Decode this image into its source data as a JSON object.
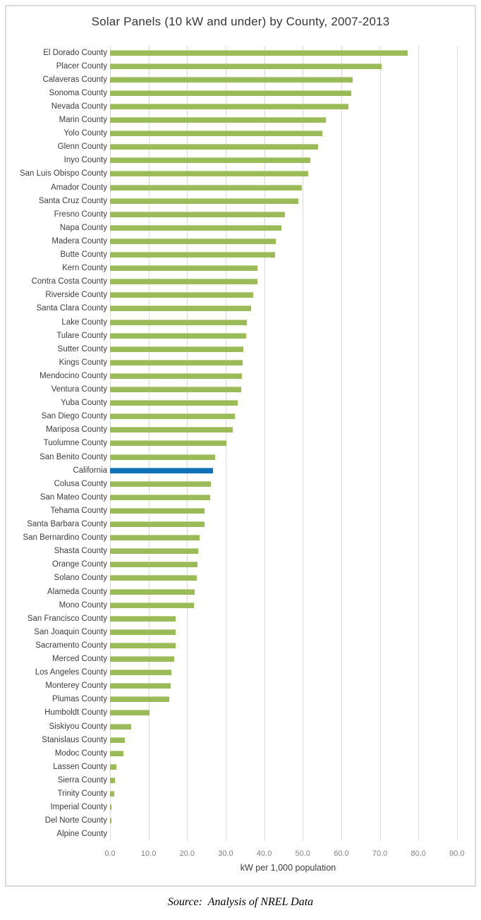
{
  "source_note": "Source:  Analysis of NREL Data",
  "colors": {
    "bar_green": "#9BBB59",
    "bar_blue_highlight": "#0F72B9",
    "gridline": "#D9D9D9",
    "figure_border": "#DBDBDB",
    "title_text": "#363636",
    "label_text": "#3D3D3D",
    "tick_text": "#7F7F7F"
  },
  "chart_data": {
    "type": "bar",
    "orientation": "horizontal",
    "title": "Solar Panels (10 kW and under) by County, 2007-2013",
    "xlabel": "kW per 1,000 population",
    "ylabel": "",
    "xlim": [
      0,
      92.4
    ],
    "grid": true,
    "legend": false,
    "x_ticks": [
      "0.0",
      "10.0",
      "20.0",
      "30.0",
      "40.0",
      "50.0",
      "60.0",
      "70.0",
      "80.0",
      "90.0"
    ],
    "highlight_category": "California",
    "categories": [
      "El Dorado County",
      "Placer County",
      "Calaveras County",
      "Sonoma County",
      "Nevada County",
      "Marin County",
      "Yolo County",
      "Glenn County",
      "Inyo County",
      "San Luis Obispo County",
      "Amador County",
      "Santa Cruz County",
      "Fresno County",
      "Napa County",
      "Madera County",
      "Butte County",
      "Kern County",
      "Contra Costa County",
      "Riverside County",
      "Santa Clara County",
      "Lake County",
      "Tulare County",
      "Sutter County",
      "Kings County",
      "Mendocino County",
      "Ventura County",
      "Yuba County",
      "San Diego County",
      "Mariposa County",
      "Tuolumne County",
      "San Benito County",
      "California",
      "Colusa County",
      "San Mateo County",
      "Tehama County",
      "Santa Barbara County",
      "San Bernardino County",
      "Shasta County",
      "Orange County",
      "Solano County",
      "Alameda County",
      "Mono County",
      "San Francisco County",
      "San Joaquin County",
      "Sacramento County",
      "Merced County",
      "Los Angeles County",
      "Monterey County",
      "Plumas County",
      "Humboldt County",
      "Siskiyou County",
      "Stanislaus County",
      "Modoc County",
      "Lassen County",
      "Sierra County",
      "Trinity County",
      "Imperial County",
      "Del Norte County",
      "Alpine County"
    ],
    "values": [
      77.2,
      70.4,
      63.0,
      62.6,
      61.8,
      56.0,
      55.0,
      53.9,
      51.9,
      51.5,
      49.7,
      48.9,
      45.3,
      44.5,
      43.0,
      42.9,
      38.3,
      38.2,
      37.2,
      36.6,
      35.5,
      35.4,
      34.5,
      34.4,
      34.3,
      34.1,
      33.1,
      32.4,
      31.8,
      30.1,
      27.3,
      26.8,
      26.1,
      25.9,
      24.6,
      24.5,
      23.3,
      22.8,
      22.7,
      22.5,
      21.9,
      21.8,
      17.1,
      17.0,
      17.0,
      16.6,
      15.9,
      15.7,
      15.3,
      10.3,
      5.5,
      3.9,
      3.4,
      1.6,
      1.2,
      1.1,
      0.3,
      0.3,
      0.0
    ]
  }
}
